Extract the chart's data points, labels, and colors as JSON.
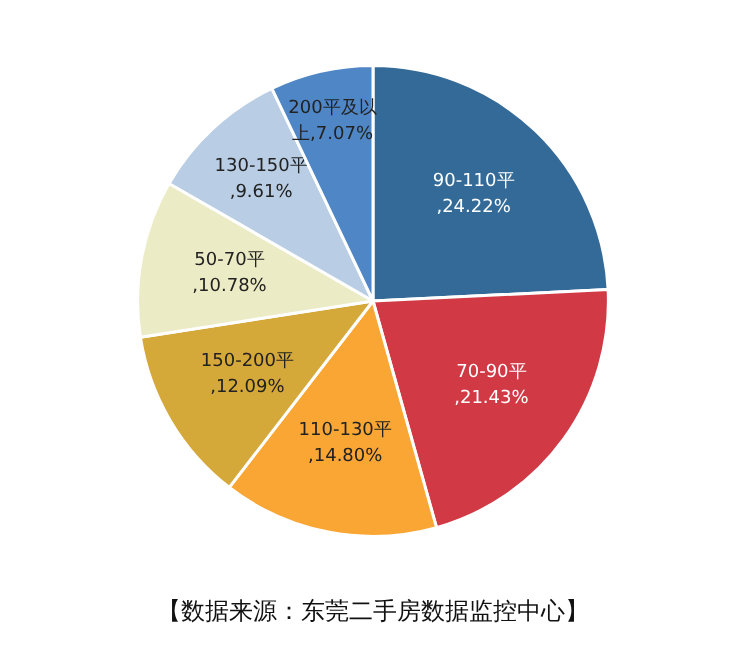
{
  "chart_data": {
    "type": "pie",
    "categories": [
      "90-110平",
      "70-90平",
      "110-130平",
      "150-200平",
      "50-70平",
      "130-150平",
      "200平及以上"
    ],
    "values": [
      24.22,
      21.43,
      14.8,
      12.09,
      10.78,
      9.61,
      7.07
    ],
    "colors": [
      "#336a98",
      "#d13a45",
      "#f9a634",
      "#d5a83a",
      "#ebebc6",
      "#b9cde4",
      "#4f86c6"
    ],
    "value_labels": [
      ",24.22%",
      ",21.43%",
      ",14.80%",
      ",12.09%",
      ",10.78%",
      ",9.61%",
      ",7.07%"
    ],
    "annotations": [
      "【数据来源：东莞二手房数据监控中心】"
    ]
  }
}
